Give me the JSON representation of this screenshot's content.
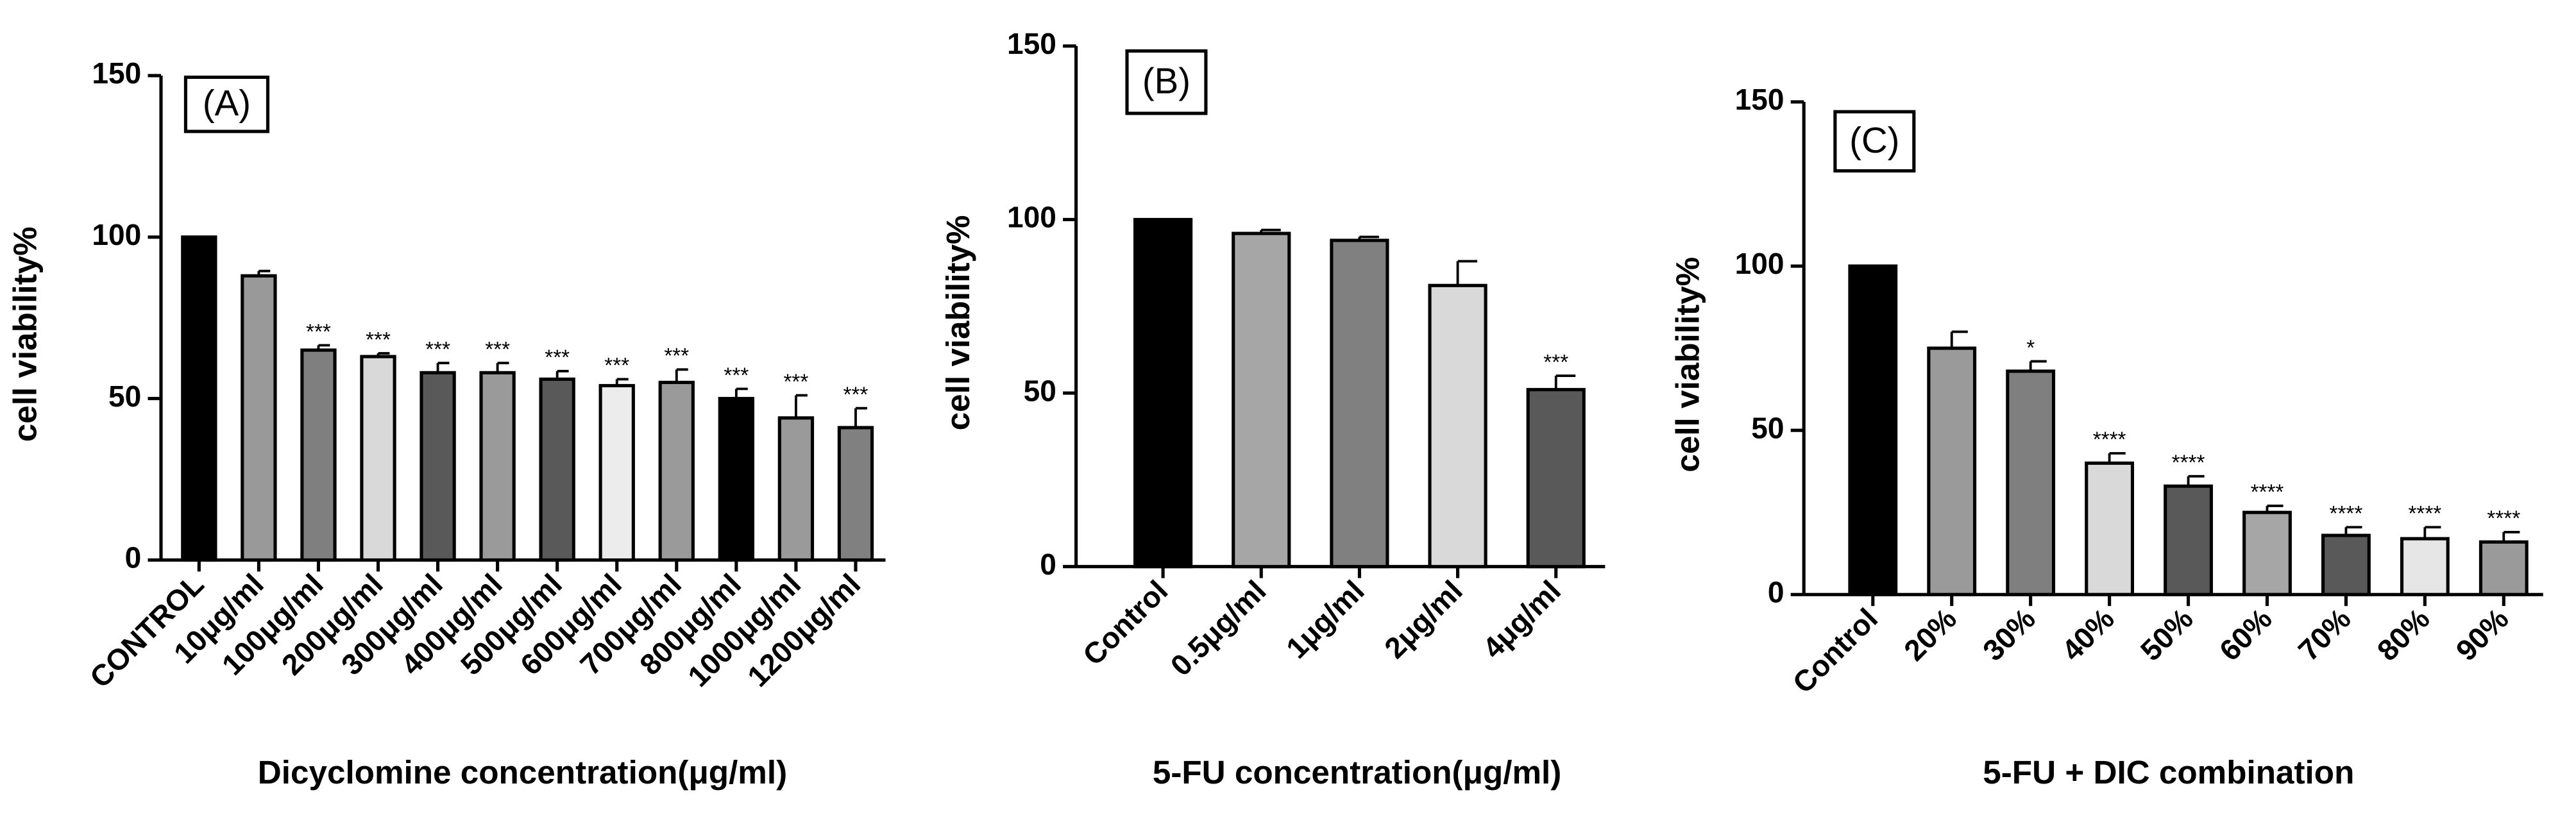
{
  "chart_data": [
    {
      "type": "bar",
      "panel_label": "(A)",
      "y_label": "cell viability%",
      "x_label": "Dicyclomine concentration(μg/ml)",
      "categories": [
        "CONTROL",
        "10μg/ml",
        "100μg/ml",
        "200μg/ml",
        "300μg/ml",
        "400μg/ml",
        "500μg/ml",
        "600μg/ml",
        "700μg/ml",
        "800μg/ml",
        "1000μg/ml",
        "1200μg/ml"
      ],
      "values": [
        100,
        88,
        65,
        63,
        58,
        58,
        56,
        54,
        55,
        50,
        44,
        41
      ],
      "errors": [
        0,
        1.5,
        1.5,
        1,
        3,
        3,
        2.5,
        2,
        4,
        3,
        7,
        6
      ],
      "annotations": [
        null,
        null,
        "***",
        "***",
        "***",
        "***",
        "***",
        "***",
        "***",
        "***",
        "***",
        "***"
      ],
      "colors": [
        "#000000",
        "#999999",
        "#7f7f7f",
        "#d9d9d9",
        "#595959",
        "#9a9a9a",
        "#595959",
        "#ececec",
        "#9a9a9a",
        "#000000",
        "#9a9a9a",
        "#808080"
      ],
      "ylim": [
        0,
        150
      ],
      "yticks": [
        0,
        50,
        100,
        150
      ]
    },
    {
      "type": "bar",
      "panel_label": "(B)",
      "y_label": "cell viability%",
      "x_label": "5-FU concentration(μg/ml)",
      "categories": [
        "Control",
        "0.5μg/ml",
        "1μg/ml",
        "2μg/ml",
        "4μg/ml"
      ],
      "values": [
        100,
        96,
        94,
        81,
        51
      ],
      "errors": [
        0,
        1,
        1,
        7,
        4
      ],
      "annotations": [
        null,
        null,
        null,
        null,
        "***"
      ],
      "colors": [
        "#000000",
        "#a6a6a6",
        "#808080",
        "#d9d9d9",
        "#595959"
      ],
      "ylim": [
        0,
        150
      ],
      "yticks": [
        0,
        50,
        100,
        150
      ]
    },
    {
      "type": "bar",
      "panel_label": "(C)",
      "y_label": "cell viability%",
      "x_label": "5-FU + DIC combination",
      "categories": [
        "Control",
        "20%",
        "30%",
        "40%",
        "50%",
        "60%",
        "70%",
        "80%",
        "90%"
      ],
      "values": [
        100,
        75,
        68,
        40,
        33,
        25,
        18,
        17,
        16
      ],
      "errors": [
        0,
        5,
        3,
        3,
        3,
        2,
        2.5,
        3.5,
        3
      ],
      "annotations": [
        null,
        null,
        "*",
        "****",
        "****",
        "****",
        "****",
        "****",
        "****"
      ],
      "colors": [
        "#000000",
        "#9a9a9a",
        "#7f7f7f",
        "#d9d9d9",
        "#595959",
        "#a6a6a6",
        "#595959",
        "#e6e6e6",
        "#9a9a9a"
      ],
      "ylim": [
        0,
        150
      ],
      "yticks": [
        0,
        50,
        100,
        150
      ]
    }
  ]
}
